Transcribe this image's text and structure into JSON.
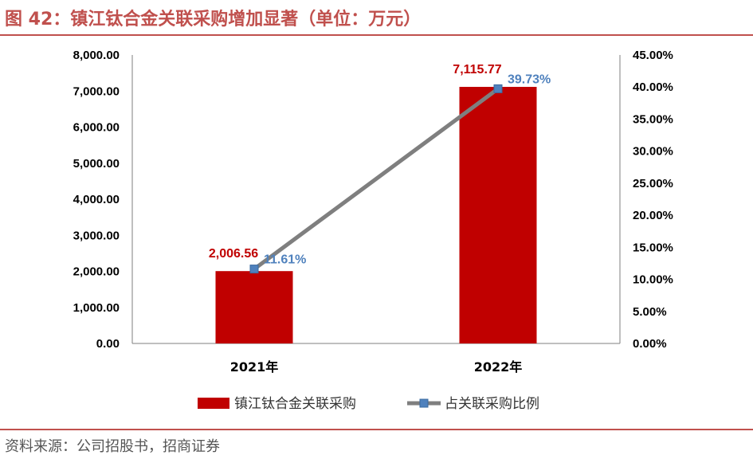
{
  "header": {
    "title": "图 42：镇江钛合金关联采购增加显著（单位：万元）"
  },
  "footer": {
    "source": "资料来源：公司招股书，招商证券"
  },
  "colors": {
    "bar": "#c00000",
    "line": "#7f7f7f",
    "marker": "#4f81bd",
    "accent": "#c0504d"
  },
  "chart_data": {
    "type": "bar",
    "categories": [
      "2021年",
      "2022年"
    ],
    "series": [
      {
        "name": "镇江钛合金关联采购",
        "type": "bar",
        "axis": "left",
        "values": [
          2006.56,
          7115.77
        ],
        "labels": [
          "2,006.56",
          "7,115.77"
        ]
      },
      {
        "name": "占关联采购比例",
        "type": "line",
        "axis": "right",
        "values": [
          11.61,
          39.73
        ],
        "labels": [
          "11.61%",
          "39.73%"
        ]
      }
    ],
    "y_left": {
      "min": 0,
      "max": 8000,
      "step": 1000,
      "tick_labels": [
        "0.00",
        "1,000.00",
        "2,000.00",
        "3,000.00",
        "4,000.00",
        "5,000.00",
        "6,000.00",
        "7,000.00",
        "8,000.00"
      ]
    },
    "y_right": {
      "min": 0,
      "max": 45,
      "step": 5,
      "tick_labels": [
        "0.00%",
        "5.00%",
        "10.00%",
        "15.00%",
        "20.00%",
        "25.00%",
        "30.00%",
        "35.00%",
        "40.00%",
        "45.00%"
      ]
    },
    "legend_position": "bottom",
    "grid": false
  }
}
